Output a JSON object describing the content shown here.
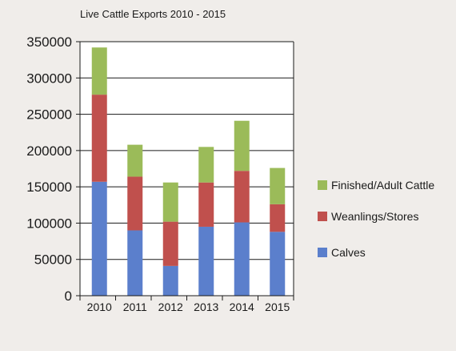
{
  "chart_data": {
    "type": "bar",
    "stacked": true,
    "title": "Live Cattle Exports 2010 - 2015",
    "xlabel": "",
    "ylabel": "",
    "categories": [
      "2010",
      "2011",
      "2012",
      "2013",
      "2014",
      "2015"
    ],
    "ylim": [
      0,
      350000
    ],
    "yticks": [
      "0",
      "50000",
      "100000",
      "150000",
      "200000",
      "250000",
      "300000",
      "350000"
    ],
    "grid": true,
    "legend_position": "right",
    "series": [
      {
        "name": "Calves",
        "color": "#5b7fcc",
        "values": [
          157000,
          90000,
          41000,
          95000,
          101000,
          88000
        ]
      },
      {
        "name": "Weanlings/Stores",
        "color": "#c0504d",
        "values": [
          120000,
          74000,
          61000,
          61000,
          71000,
          38000
        ]
      },
      {
        "name": "Finished/Adult Cattle",
        "color": "#9bbb59",
        "values": [
          65000,
          44000,
          54000,
          49000,
          69000,
          50000
        ]
      }
    ]
  }
}
